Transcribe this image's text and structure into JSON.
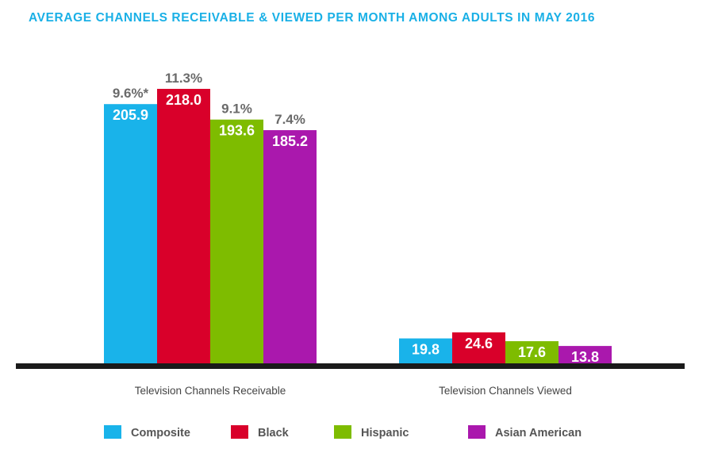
{
  "title": "AVERAGE CHANNELS RECEIVABLE & VIEWED PER MONTH AMONG ADULTS IN MAY 2016",
  "title_color": "#1ab0e6",
  "chart_data": {
    "type": "bar",
    "categories": [
      "Television Channels Receivable",
      "Television Channels Viewed"
    ],
    "series": [
      {
        "name": "Composite",
        "color": "#19b3ea",
        "values": [
          205.9,
          19.8
        ],
        "value_labels": [
          "205.9",
          "19.8"
        ],
        "pct_labels": [
          "9.6%*",
          ""
        ]
      },
      {
        "name": "Black",
        "color": "#d9002a",
        "values": [
          218.0,
          24.6
        ],
        "value_labels": [
          "218.0",
          "24.6"
        ],
        "pct_labels": [
          "11.3%",
          ""
        ]
      },
      {
        "name": "Hispanic",
        "color": "#7ebc00",
        "values": [
          193.6,
          17.6
        ],
        "value_labels": [
          "193.6",
          "17.6"
        ],
        "pct_labels": [
          "9.1%",
          ""
        ]
      },
      {
        "name": "Asian American",
        "color": "#aa18ad",
        "values": [
          185.2,
          13.8
        ],
        "value_labels": [
          "185.2",
          "13.8"
        ],
        "pct_labels": [
          "7.4%",
          ""
        ]
      }
    ],
    "ylim": [
      0,
      218
    ],
    "grid": false,
    "legend_position": "bottom"
  }
}
